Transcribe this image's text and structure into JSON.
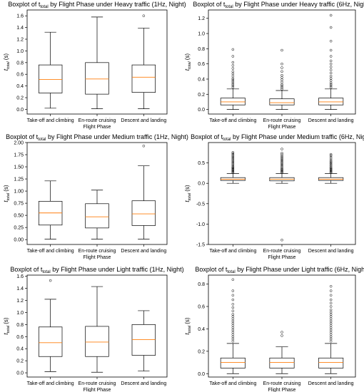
{
  "chart_data": [
    {
      "type": "boxplot",
      "title_prefix": "Boxplot of ",
      "title_var": "t",
      "title_sub": "total",
      "title_suffix": " by Flight Phase under Heavy traffic (1Hz, Night)",
      "xlabel": "Flight Phase",
      "ylabel_var": "t",
      "ylabel_sub": "total",
      "ylabel_unit": " (s)",
      "ylim": [
        -0.08,
        1.7
      ],
      "yticks": [
        "0.0",
        "0.2",
        "0.4",
        "0.6",
        "0.8",
        "1.0",
        "1.2",
        "1.4",
        "1.6"
      ],
      "categories": [
        "Take-off and climbing",
        "En-route cruising",
        "Descent and landing"
      ],
      "boxes": [
        {
          "whislo": 0.02,
          "q1": 0.28,
          "med": 0.51,
          "q3": 0.76,
          "whishi": 1.32,
          "fliers": []
        },
        {
          "whislo": 0.01,
          "q1": 0.26,
          "med": 0.52,
          "q3": 0.8,
          "whishi": 1.58,
          "fliers": []
        },
        {
          "whislo": 0.01,
          "q1": 0.29,
          "med": 0.55,
          "q3": 0.76,
          "whishi": 1.39,
          "fliers": [
            1.6
          ]
        }
      ]
    },
    {
      "type": "boxplot",
      "title_prefix": "Boxplot of ",
      "title_var": "t",
      "title_sub": "total",
      "title_suffix": " by Flight Phase under Heavy traffic (6Hz, Night)",
      "xlabel": "Flight Phase",
      "ylabel_var": "t",
      "ylabel_sub": "total",
      "ylabel_unit": " (s)",
      "ylim": [
        -0.06,
        1.31
      ],
      "yticks": [
        "0.0",
        "0.2",
        "0.4",
        "0.6",
        "0.8",
        "1.0",
        "1.2"
      ],
      "categories": [
        "Take-off and climbing",
        "En-route cruising",
        "Descent and landing"
      ],
      "boxes": [
        {
          "whislo": 0.0,
          "q1": 0.06,
          "med": 0.1,
          "q3": 0.15,
          "whishi": 0.27,
          "fliers": [
            0.29,
            0.31,
            0.33,
            0.35,
            0.37,
            0.39,
            0.41,
            0.44,
            0.47,
            0.5,
            0.54,
            0.58,
            0.62,
            0.7,
            0.79
          ]
        },
        {
          "whislo": 0.0,
          "q1": 0.06,
          "med": 0.09,
          "q3": 0.14,
          "whishi": 0.25,
          "fliers": [
            0.27,
            0.29,
            0.31,
            0.33,
            0.36,
            0.39,
            0.42,
            0.45,
            0.5,
            0.55,
            0.6,
            0.78
          ]
        },
        {
          "whislo": 0.0,
          "q1": 0.06,
          "med": 0.1,
          "q3": 0.15,
          "whishi": 0.27,
          "fliers": [
            0.29,
            0.31,
            0.33,
            0.35,
            0.38,
            0.41,
            0.44,
            0.48,
            0.52,
            0.56,
            0.6,
            0.64,
            0.7,
            0.78,
            0.9,
            1.08,
            1.24
          ]
        }
      ]
    },
    {
      "type": "boxplot",
      "title_prefix": "Boxplot of ",
      "title_var": "t",
      "title_sub": "total",
      "title_suffix": " by Flight Phase under Medium traffic (1Hz, Night)",
      "xlabel": "Flight Phase",
      "ylabel_var": "t",
      "ylabel_sub": "total",
      "ylabel_unit": " (s)",
      "ylim": [
        -0.1,
        2.0
      ],
      "yticks": [
        "0.00",
        "0.25",
        "0.50",
        "0.75",
        "1.00",
        "1.25",
        "1.50",
        "1.75",
        "2.00"
      ],
      "categories": [
        "Take-off and climbing",
        "En-route cruising",
        "Descent and landing"
      ],
      "boxes": [
        {
          "whislo": 0.01,
          "q1": 0.3,
          "med": 0.55,
          "q3": 0.79,
          "whishi": 1.21,
          "fliers": []
        },
        {
          "whislo": 0.01,
          "q1": 0.24,
          "med": 0.47,
          "q3": 0.74,
          "whishi": 1.02,
          "fliers": []
        },
        {
          "whislo": 0.01,
          "q1": 0.29,
          "med": 0.53,
          "q3": 0.8,
          "whishi": 1.52,
          "fliers": [
            1.93
          ]
        }
      ]
    },
    {
      "type": "boxplot",
      "title_prefix": "Boxplot of ",
      "title_var": "t",
      "title_sub": "total",
      "title_suffix": " by Flight Phase under Medium traffic (6Hz, Night)",
      "xlabel": "Flight Phase",
      "ylabel_var": "t",
      "ylabel_sub": "total",
      "ylabel_unit": " (s)",
      "ylim": [
        -1.5,
        1.0
      ],
      "yticks": [
        "-1.5",
        "-1.0",
        "-0.5",
        "0.0",
        "0.5"
      ],
      "categories": [
        "Take-off and climbing",
        "En-route cruising",
        "Descent and landing"
      ],
      "boxes": [
        {
          "whislo": 0.0,
          "q1": 0.07,
          "med": 0.1,
          "q3": 0.14,
          "whishi": 0.24,
          "fliers": [
            0.26,
            0.28,
            0.3,
            0.32,
            0.34,
            0.36,
            0.38,
            0.4,
            0.43,
            0.46,
            0.49,
            0.52,
            0.55,
            0.58,
            0.61,
            0.64,
            0.67,
            0.7,
            0.73,
            0.76
          ]
        },
        {
          "whislo": 0.0,
          "q1": 0.06,
          "med": 0.1,
          "q3": 0.14,
          "whishi": 0.24,
          "fliers": [
            -1.39,
            0.26,
            0.28,
            0.3,
            0.32,
            0.34,
            0.36,
            0.39,
            0.42,
            0.45,
            0.48,
            0.51,
            0.54,
            0.57,
            0.6,
            0.63,
            0.66,
            0.7,
            0.74,
            0.84
          ]
        },
        {
          "whislo": 0.0,
          "q1": 0.07,
          "med": 0.1,
          "q3": 0.14,
          "whishi": 0.24,
          "fliers": [
            0.26,
            0.28,
            0.3,
            0.32,
            0.34,
            0.36,
            0.38,
            0.41,
            0.44,
            0.47,
            0.5,
            0.53,
            0.56,
            0.6,
            0.64,
            0.68,
            0.71
          ]
        }
      ]
    },
    {
      "type": "boxplot",
      "title_prefix": "Boxplot of ",
      "title_var": "t",
      "title_sub": "total",
      "title_suffix": " by Flight Phase under Light traffic (1Hz, Night)",
      "xlabel": "Flight Phase",
      "ylabel_var": "t",
      "ylabel_sub": "total",
      "ylabel_unit": " (s)",
      "ylim": [
        -0.07,
        1.62
      ],
      "yticks": [
        "0.0",
        "0.2",
        "0.4",
        "0.6",
        "0.8",
        "1.0",
        "1.2",
        "1.4",
        "1.6"
      ],
      "categories": [
        "Take-off and climbing",
        "En-route cruising",
        "Descent and landing"
      ],
      "boxes": [
        {
          "whislo": 0.02,
          "q1": 0.27,
          "med": 0.5,
          "q3": 0.76,
          "whishi": 1.22,
          "fliers": [
            1.53
          ]
        },
        {
          "whislo": 0.01,
          "q1": 0.27,
          "med": 0.51,
          "q3": 0.77,
          "whishi": 1.43,
          "fliers": []
        },
        {
          "whislo": 0.03,
          "q1": 0.29,
          "med": 0.55,
          "q3": 0.8,
          "whishi": 1.03,
          "fliers": []
        }
      ]
    },
    {
      "type": "boxplot",
      "title_prefix": "Boxplot of ",
      "title_var": "t",
      "title_sub": "total",
      "title_suffix": " by Flight Phase under Light traffic (6Hz, Night)",
      "xlabel": "Flight Phase",
      "ylabel_var": "t",
      "ylabel_sub": "total",
      "ylabel_unit": " (s)",
      "ylim": [
        -0.03,
        0.88
      ],
      "yticks": [
        "0.0",
        "0.2",
        "0.4",
        "0.6",
        "0.8"
      ],
      "categories": [
        "Take-off and climbing",
        "En-route cruising",
        "Descent and landing"
      ],
      "boxes": [
        {
          "whislo": 0.0,
          "q1": 0.05,
          "med": 0.1,
          "q3": 0.14,
          "whishi": 0.27,
          "fliers": [
            0.29,
            0.31,
            0.33,
            0.35,
            0.37,
            0.39,
            0.41,
            0.43,
            0.45,
            0.47,
            0.49,
            0.51,
            0.53,
            0.56,
            0.59,
            0.62,
            0.66,
            0.7,
            0.74,
            0.84
          ]
        },
        {
          "whislo": 0.0,
          "q1": 0.05,
          "med": 0.1,
          "q3": 0.14,
          "whishi": 0.24,
          "fliers": [
            0.34,
            0.37
          ]
        },
        {
          "whislo": 0.0,
          "q1": 0.05,
          "med": 0.1,
          "q3": 0.14,
          "whishi": 0.27,
          "fliers": [
            0.29,
            0.31,
            0.33,
            0.35,
            0.37,
            0.39,
            0.41,
            0.43,
            0.45,
            0.47,
            0.49,
            0.51,
            0.53,
            0.55,
            0.57,
            0.6,
            0.63,
            0.66,
            0.7,
            0.74,
            0.78
          ]
        }
      ]
    }
  ],
  "colors": {
    "box": "#000000",
    "median": "#ff7f0e",
    "flier": "#000000"
  }
}
